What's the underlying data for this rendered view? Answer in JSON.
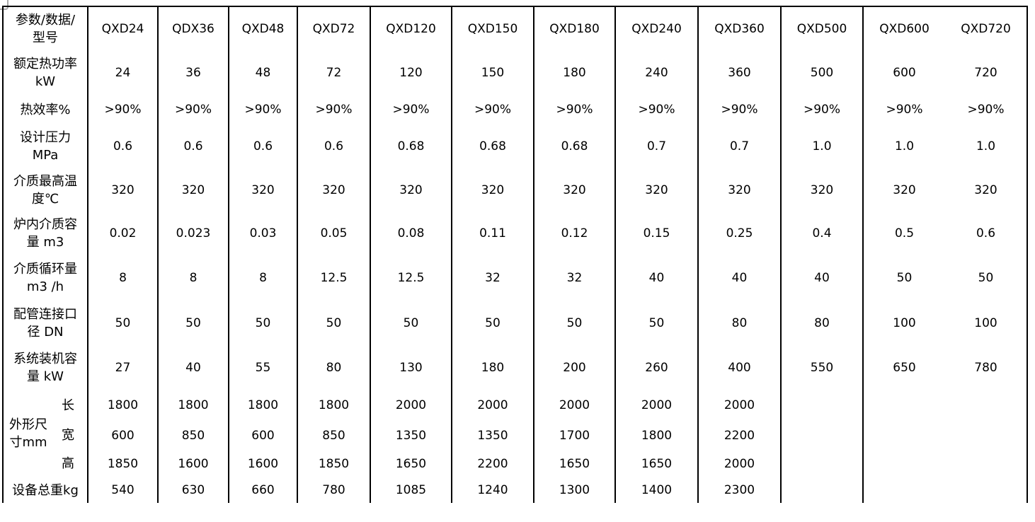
{
  "page": {
    "background_color": "#ffffff",
    "text_color": "#000000",
    "border_color": "#000000"
  },
  "chart_data": {
    "type": "table",
    "corner_header_lines": [
      "参数/数据/",
      "型号"
    ],
    "columns": [
      "QXD24",
      "QDX36",
      "QXD48",
      "QXD72",
      "QXD120",
      "QXD150",
      "QXD180",
      "QXD240",
      "QXD360",
      "QXD500",
      "QXD600",
      "QXD720"
    ],
    "rows": [
      {
        "label_lines": [
          "额定热功率",
          "kW"
        ],
        "values": [
          "24",
          "36",
          "48",
          "72",
          "120",
          "150",
          "180",
          "240",
          "360",
          "500",
          "600",
          "720"
        ]
      },
      {
        "label_lines": [
          "热效率%"
        ],
        "values": [
          ">90%",
          ">90%",
          ">90%",
          ">90%",
          ">90%",
          ">90%",
          ">90%",
          ">90%",
          ">90%",
          ">90%",
          ">90%",
          ">90%"
        ]
      },
      {
        "label_lines": [
          "设计压力",
          "MPa"
        ],
        "values": [
          "0.6",
          "0.6",
          "0.6",
          "0.6",
          "0.68",
          "0.68",
          "0.68",
          "0.7",
          "0.7",
          "1.0",
          "1.0",
          "1.0"
        ]
      },
      {
        "label_lines": [
          "介质最高温",
          "度℃"
        ],
        "values": [
          "320",
          "320",
          "320",
          "320",
          "320",
          "320",
          "320",
          "320",
          "320",
          "320",
          "320",
          "320"
        ]
      },
      {
        "label_lines": [
          "炉内介质容",
          "量 m3"
        ],
        "values": [
          "0.02",
          "0.023",
          "0.03",
          "0.05",
          "0.08",
          "0.11",
          "0.12",
          "0.15",
          "0.25",
          "0.4",
          "0.5",
          "0.6"
        ]
      },
      {
        "label_lines": [
          "介质循环量",
          "m3 /h"
        ],
        "values": [
          "8",
          "8",
          "8",
          "12.5",
          "12.5",
          "32",
          "32",
          "40",
          "40",
          "40",
          "50",
          "50"
        ]
      },
      {
        "label_lines": [
          "配管连接口",
          "径 DN"
        ],
        "values": [
          "50",
          "50",
          "50",
          "50",
          "50",
          "50",
          "50",
          "50",
          "80",
          "80",
          "100",
          "100"
        ]
      },
      {
        "label_lines": [
          "系统装机容",
          "量 kW"
        ],
        "values": [
          "27",
          "40",
          "55",
          "80",
          "130",
          "180",
          "200",
          "260",
          "400",
          "550",
          "650",
          "780"
        ]
      }
    ],
    "dimension_group": {
      "label_lines": [
        "外形尺",
        "寸mm"
      ],
      "sub_rows": [
        {
          "label": "长",
          "values": [
            "1800",
            "1800",
            "1800",
            "1800",
            "2000",
            "2000",
            "2000",
            "2000",
            "2000",
            "",
            "",
            ""
          ]
        },
        {
          "label": "宽",
          "values": [
            "600",
            "850",
            "600",
            "850",
            "1350",
            "1350",
            "1700",
            "1800",
            "2200",
            "",
            "",
            ""
          ]
        },
        {
          "label": "高",
          "values": [
            "1850",
            "1600",
            "1600",
            "1850",
            "1650",
            "2200",
            "1650",
            "1650",
            "2000",
            "",
            "",
            ""
          ]
        }
      ]
    },
    "weight_row": {
      "label": "设备总重kg",
      "values": [
        "540",
        "630",
        "660",
        "780",
        "1085",
        "1240",
        "1300",
        "1400",
        "2300",
        "",
        "",
        ""
      ]
    }
  }
}
